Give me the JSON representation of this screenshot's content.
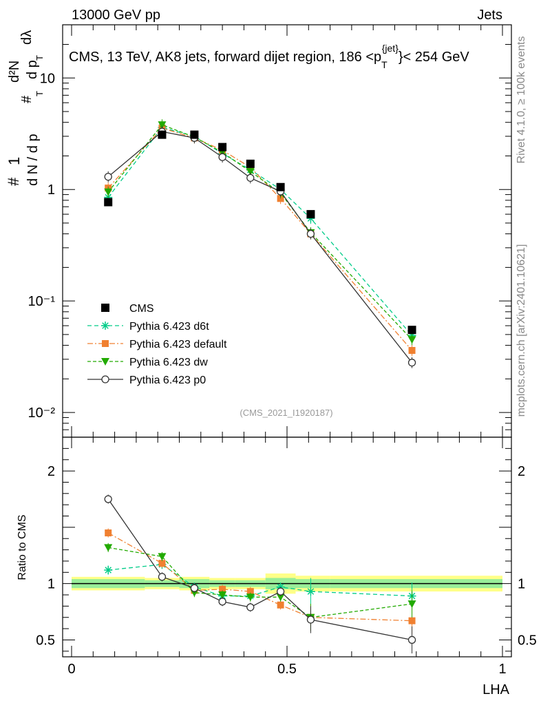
{
  "header": {
    "left": "13000 GeV pp",
    "right": "Jets"
  },
  "side_text": {
    "rivet": "Rivet 4.1.0, ≥ 100k events",
    "mcplots": "mcplots.cern.ch [arXiv:2401.10621]"
  },
  "chart_data": {
    "type": "line",
    "title_main": "CMS, 13 TeV, AK8 jets, forward dijet region, 186 <p",
    "title_sub": "T",
    "title_sup": "{jet}",
    "title_end": "}< 254 GeV",
    "analysis_label": "(CMS_2021_I1920187)",
    "xlabel": "LHA",
    "ylabel_upper": "d²N / d p_T dλ",
    "ylabel_lower": "Ratio to CMS",
    "ylabel_upper_parts": {
      "hash": "#",
      "one": "1",
      "dn_over": "d N / d p",
      "sub_t": "T",
      "d2n": "d²N",
      "dp": "d p",
      "dlambda": "dλ"
    },
    "x_range": [
      0,
      1
    ],
    "x_ticks": [
      0,
      0.5,
      1
    ],
    "x_tick_labels": [
      "0",
      "0.5",
      "1"
    ],
    "upper_y_log_range": [
      0.006,
      30
    ],
    "upper_y_ticks": [
      {
        "value": 10,
        "label": "10"
      },
      {
        "value": 1,
        "label": "1"
      },
      {
        "value": 0.1,
        "label": "10⁻¹"
      },
      {
        "value": 0.01,
        "label": "10⁻²"
      }
    ],
    "lower_y_range": [
      0.35,
      2.3
    ],
    "lower_y_ticks": [
      0.5,
      1,
      2
    ],
    "lower_y_tick_labels": [
      "0.5",
      "1",
      "2"
    ],
    "x": [
      0.085,
      0.21,
      0.285,
      0.35,
      0.415,
      0.485,
      0.555,
      0.79
    ],
    "cms": {
      "name": "CMS",
      "color": "#000000",
      "values": [
        0.77,
        3.1,
        3.1,
        2.4,
        1.7,
        1.05,
        0.6,
        0.055
      ],
      "band_edges": [
        0.0,
        0.17,
        0.25,
        0.32,
        0.38,
        0.45,
        0.52,
        0.6,
        1.0
      ],
      "band_stat": [
        0.04,
        0.03,
        0.04,
        0.03,
        0.03,
        0.05,
        0.04,
        0.04
      ],
      "band_total": [
        0.06,
        0.05,
        0.06,
        0.05,
        0.05,
        0.09,
        0.07,
        0.07
      ]
    },
    "series": [
      {
        "name": "Pythia 6.423 d6t",
        "color": "#00cc88",
        "dash": "6,4",
        "marker": "star",
        "values": [
          0.85,
          3.6,
          3.0,
          2.1,
          1.5,
          1.0,
          0.55,
          0.049
        ],
        "ratio": [
          1.12,
          1.17,
          0.97,
          0.89,
          0.89,
          0.97,
          0.93,
          0.89
        ]
      },
      {
        "name": "Pythia 6.423 default",
        "color": "#f08030",
        "dash": "8,3,2,3",
        "marker": "square",
        "values": [
          1.03,
          3.55,
          2.9,
          2.25,
          1.58,
          0.83,
          0.4,
          0.036
        ],
        "ratio": [
          1.45,
          1.18,
          0.94,
          0.95,
          0.93,
          0.81,
          0.7,
          0.67
        ]
      },
      {
        "name": "Pythia 6.423 dw",
        "color": "#22aa00",
        "dash": "5,3",
        "marker": "triangle",
        "values": [
          0.95,
          3.8,
          2.95,
          2.15,
          1.45,
          0.93,
          0.41,
          0.045
        ],
        "ratio": [
          1.32,
          1.24,
          0.92,
          0.9,
          0.88,
          0.88,
          0.7,
          0.82
        ]
      },
      {
        "name": "Pythia 6.423 p0",
        "color": "#333333",
        "dash": "",
        "marker": "circle",
        "values": [
          1.3,
          3.3,
          2.9,
          1.95,
          1.27,
          0.96,
          0.4,
          0.028
        ],
        "ratio": [
          1.75,
          1.06,
          0.96,
          0.84,
          0.79,
          0.93,
          0.68,
          0.5
        ]
      }
    ],
    "legend": [
      "CMS",
      "Pythia 6.423 d6t",
      "Pythia 6.423 default",
      "Pythia 6.423 dw",
      "Pythia 6.423 p0"
    ]
  }
}
